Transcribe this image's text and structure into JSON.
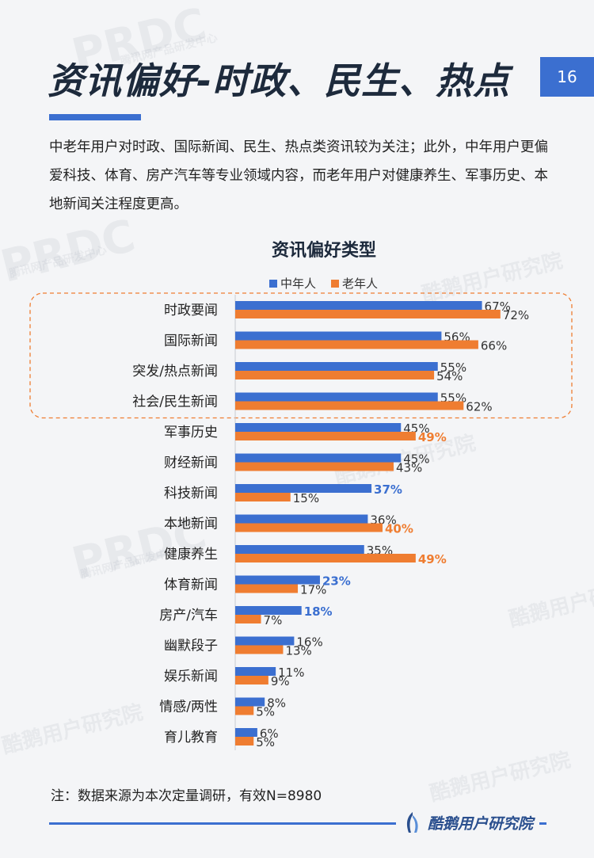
{
  "page": {
    "title": "资讯偏好-时政、民生、热点",
    "page_number": "16",
    "intro": "中老年用户对时政、国际新闻、民生、热点类资讯较为关注；此外，中年用户更偏爱科技、体育、房产汽车等专业领域内容，而老年用户对健康养生、军事历史、本地新闻关注程度更高。",
    "footnote": "注：数据来源为本次定量调研，有效N=8980",
    "brand": "酷鹅用户研究院",
    "watermark_text": "PRDC",
    "watermark_subtext": "腾讯网产品研发中心",
    "watermark_brand": "酷鹅用户研究院"
  },
  "colors": {
    "middle_aged": "#3b6fd0",
    "elderly": "#ef7d31",
    "accent": "#3b6fd0",
    "highlight_box": "#ef7d31"
  },
  "chart_data": {
    "type": "bar",
    "orientation": "horizontal",
    "title": "资讯偏好类型",
    "categories": [
      "时政要闻",
      "国际新闻",
      "突发/热点新闻",
      "社会/民生新闻",
      "军事历史",
      "财经新闻",
      "科技新闻",
      "本地新闻",
      "健康养生",
      "体育新闻",
      "房产/汽车",
      "幽默段子",
      "娱乐新闻",
      "情感/两性",
      "育儿教育"
    ],
    "series": [
      {
        "name": "中年人",
        "values": [
          67,
          56,
          55,
          55,
          45,
          45,
          37,
          36,
          35,
          23,
          18,
          16,
          11,
          8,
          6
        ],
        "highlighted": [
          false,
          false,
          false,
          false,
          false,
          false,
          true,
          false,
          false,
          true,
          true,
          false,
          false,
          false,
          false
        ]
      },
      {
        "name": "老年人",
        "values": [
          72,
          66,
          54,
          62,
          49,
          43,
          15,
          40,
          49,
          17,
          7,
          13,
          9,
          5,
          5
        ],
        "highlighted": [
          false,
          false,
          false,
          false,
          true,
          false,
          false,
          true,
          true,
          false,
          false,
          false,
          false,
          false,
          false
        ]
      }
    ],
    "value_suffix": "%",
    "xlim": [
      0,
      100
    ],
    "legend_position": "top",
    "highlight_group_categories": [
      "时政要闻",
      "国际新闻",
      "突发/热点新闻",
      "社会/民生新闻"
    ]
  }
}
